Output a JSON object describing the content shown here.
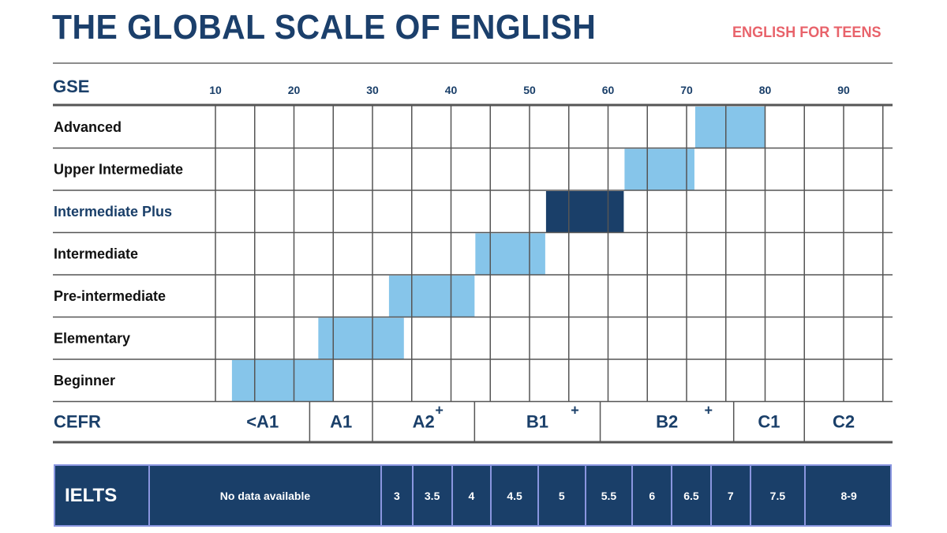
{
  "header": {
    "title": "THE GLOBAL SCALE OF ENGLISH",
    "subtitle": "ENGLISH FOR TEENS"
  },
  "colors": {
    "navy": "#1a3f69",
    "light_blue": "#86c5ea",
    "accent_red": "#e8636b",
    "grid": "#555555"
  },
  "chart_data": {
    "type": "bar",
    "orientation": "horizontal-range",
    "title": "THE GLOBAL SCALE OF ENGLISH",
    "xlabel": "GSE",
    "xlim": [
      10,
      96
    ],
    "x_ticks": [
      10,
      20,
      30,
      40,
      50,
      60,
      70,
      80,
      90
    ],
    "grid": true,
    "categories": [
      "Advanced",
      "Upper Intermediate",
      "Intermediate Plus",
      "Intermediate",
      "Pre-intermediate",
      "Elementary",
      "Beginner"
    ],
    "highlighted_category": "Intermediate Plus",
    "ranges": [
      {
        "level": "Advanced",
        "from": 71,
        "to": 80
      },
      {
        "level": "Upper Intermediate",
        "from": 62,
        "to": 71
      },
      {
        "level": "Intermediate Plus",
        "from": 52,
        "to": 62
      },
      {
        "level": "Intermediate",
        "from": 43,
        "to": 52
      },
      {
        "level": "Pre-intermediate",
        "from": 32,
        "to": 43
      },
      {
        "level": "Elementary",
        "from": 23,
        "to": 34
      },
      {
        "level": "Beginner",
        "from": 12,
        "to": 25
      }
    ],
    "cefr": {
      "label": "CEFR",
      "bands": [
        {
          "label": "<A1",
          "from": 10,
          "to": 22
        },
        {
          "label": "A1",
          "from": 22,
          "to": 30
        },
        {
          "label": "A2",
          "plus": "+",
          "from": 30,
          "to": 43
        },
        {
          "label": "B1",
          "plus": "+",
          "from": 43,
          "to": 59
        },
        {
          "label": "B2",
          "plus": "+",
          "from": 59,
          "to": 76
        },
        {
          "label": "C1",
          "from": 76,
          "to": 85
        },
        {
          "label": "C2",
          "from": 85,
          "to": 96
        }
      ]
    },
    "ielts": {
      "label": "IELTS",
      "bands": [
        {
          "label": "No data available",
          "from": 10,
          "to": 31
        },
        {
          "label": "3",
          "from": 31,
          "to": 35
        },
        {
          "label": "3.5",
          "from": 35,
          "to": 40
        },
        {
          "label": "4",
          "from": 40,
          "to": 45
        },
        {
          "label": "4.5",
          "from": 45,
          "to": 51
        },
        {
          "label": "5",
          "from": 51,
          "to": 57
        },
        {
          "label": "5.5",
          "from": 57,
          "to": 63
        },
        {
          "label": "6",
          "from": 63,
          "to": 68
        },
        {
          "label": "6.5",
          "from": 68,
          "to": 73
        },
        {
          "label": "7",
          "from": 73,
          "to": 78
        },
        {
          "label": "7.5",
          "from": 78,
          "to": 85
        },
        {
          "label": "8-9",
          "from": 85,
          "to": 96
        }
      ]
    }
  }
}
